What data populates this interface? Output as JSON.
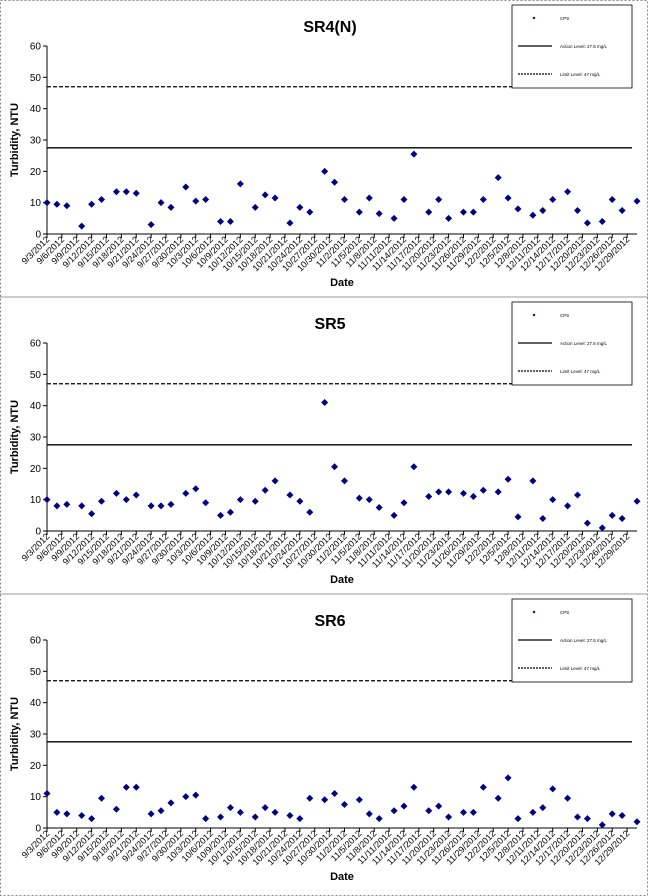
{
  "chart_data": [
    {
      "type": "scatter",
      "title": "SR4(N)",
      "x_label": "Date",
      "y_label": "Turbidity, NTU",
      "x": [
        "9/3/2012",
        "9/5/2012",
        "9/7/2012",
        "9/10/2012",
        "9/12/2012",
        "9/14/2012",
        "9/17/2012",
        "9/19/2012",
        "9/21/2012",
        "9/24/2012",
        "9/26/2012",
        "9/28/2012",
        "10/1/2012",
        "10/3/2012",
        "10/5/2012",
        "10/8/2012",
        "10/10/2012",
        "10/12/2012",
        "10/15/2012",
        "10/17/2012",
        "10/19/2012",
        "10/22/2012",
        "10/24/2012",
        "10/26/2012",
        "10/29/2012",
        "10/31/2012",
        "11/2/2012",
        "11/5/2012",
        "11/7/2012",
        "11/9/2012",
        "11/12/2012",
        "11/14/2012",
        "11/16/2012",
        "11/19/2012",
        "11/21/2012",
        "11/23/2012",
        "11/26/2012",
        "11/28/2012",
        "11/30/2012",
        "12/3/2012",
        "12/5/2012",
        "12/7/2012",
        "12/10/2012",
        "12/12/2012",
        "12/14/2012",
        "12/17/2012",
        "12/19/2012",
        "12/21/2012",
        "12/24/2012",
        "12/26/2012",
        "12/28/2012",
        "12/31/2012"
      ],
      "series": [
        {
          "name": "CPS",
          "color": "#000080",
          "values": [
            10,
            9.5,
            9,
            2.5,
            9.5,
            11,
            13.5,
            13.5,
            13,
            3,
            10,
            8.5,
            15,
            10.5,
            11,
            4,
            4,
            16,
            8.5,
            12.5,
            11.5,
            3.5,
            8.5,
            7,
            20,
            16.5,
            11,
            7,
            11.5,
            6.5,
            5,
            11,
            25.5,
            7,
            11,
            5,
            7,
            7,
            11,
            18,
            11.5,
            8,
            6,
            7.5,
            11,
            13.5,
            7.5,
            3.5,
            4,
            11,
            7.5,
            10.5
          ]
        }
      ],
      "reference_lines": [
        {
          "name": "Action Level: 27.5 mg/L",
          "value": 27.5,
          "dash": false
        },
        {
          "name": "Limit Level: 47 mg/L",
          "value": 47,
          "dash": true
        }
      ],
      "xlim": [
        "9/3/2012",
        "12/31/2012"
      ],
      "xticks": [
        "9/3/2012",
        "9/6/2012",
        "9/9/2012",
        "9/12/2012",
        "9/15/2012",
        "9/18/2012",
        "9/21/2012",
        "9/24/2012",
        "9/27/2012",
        "9/30/2012",
        "10/3/2012",
        "10/6/2012",
        "10/9/2012",
        "10/12/2012",
        "10/15/2012",
        "10/18/2012",
        "10/21/2012",
        "10/24/2012",
        "10/27/2012",
        "10/30/2012",
        "11/2/2012",
        "11/5/2012",
        "11/8/2012",
        "11/11/2012",
        "11/14/2012",
        "11/17/2012",
        "11/20/2012",
        "11/23/2012",
        "11/26/2012",
        "11/29/2012",
        "12/2/2012",
        "12/5/2012",
        "12/8/2012",
        "12/11/2012",
        "12/14/2012",
        "12/17/2012",
        "12/20/2012",
        "12/23/2012",
        "12/26/2012",
        "12/29/2012"
      ],
      "ylim": [
        0,
        60
      ],
      "yticks": [
        0,
        10,
        20,
        30,
        40,
        50,
        60
      ],
      "legend": "top-right"
    },
    {
      "type": "scatter",
      "title": "SR5",
      "x_label": "Date",
      "y_label": "Turbidity, NTU",
      "x": [
        "9/3/2012",
        "9/5/2012",
        "9/7/2012",
        "9/10/2012",
        "9/12/2012",
        "9/14/2012",
        "9/17/2012",
        "9/19/2012",
        "9/21/2012",
        "9/24/2012",
        "9/26/2012",
        "9/28/2012",
        "10/1/2012",
        "10/3/2012",
        "10/5/2012",
        "10/8/2012",
        "10/10/2012",
        "10/12/2012",
        "10/15/2012",
        "10/17/2012",
        "10/19/2012",
        "10/22/2012",
        "10/24/2012",
        "10/26/2012",
        "10/29/2012",
        "10/31/2012",
        "11/2/2012",
        "11/5/2012",
        "11/7/2012",
        "11/9/2012",
        "11/12/2012",
        "11/14/2012",
        "11/16/2012",
        "11/19/2012",
        "11/21/2012",
        "11/23/2012",
        "11/26/2012",
        "11/28/2012",
        "11/30/2012",
        "12/3/2012",
        "12/5/2012",
        "12/7/2012",
        "12/10/2012",
        "12/12/2012",
        "12/14/2012",
        "12/17/2012",
        "12/19/2012",
        "12/21/2012",
        "12/24/2012",
        "12/26/2012",
        "12/28/2012",
        "12/31/2012"
      ],
      "series": [
        {
          "name": "CPS",
          "color": "#000080",
          "values": [
            10,
            8,
            8.5,
            8,
            5.5,
            9.5,
            12,
            10,
            11.5,
            8,
            8,
            8.5,
            12,
            13.5,
            9,
            5,
            6,
            10,
            9.5,
            13,
            16,
            11.5,
            9.5,
            6,
            41,
            20.5,
            16,
            10.5,
            10,
            7.5,
            5,
            9,
            20.5,
            11,
            12.5,
            12.5,
            12,
            11,
            13,
            12.5,
            16.5,
            4.5,
            16,
            4,
            10,
            8,
            11.5,
            2.5,
            1,
            5,
            4,
            9.5
          ]
        }
      ],
      "reference_lines": [
        {
          "name": "Action Level: 27.5 mg/L",
          "value": 27.5,
          "dash": false
        },
        {
          "name": "Limit Level: 47 mg/L",
          "value": 47,
          "dash": true
        }
      ],
      "xlim": [
        "9/3/2012",
        "12/31/2012"
      ],
      "xticks": [
        "9/3/2012",
        "9/6/2012",
        "9/9/2012",
        "9/12/2012",
        "9/15/2012",
        "9/18/2012",
        "9/21/2012",
        "9/24/2012",
        "9/27/2012",
        "9/30/2012",
        "10/3/2012",
        "10/6/2012",
        "10/9/2012",
        "10/12/2012",
        "10/15/2012",
        "10/18/2012",
        "10/21/2012",
        "10/24/2012",
        "10/27/2012",
        "10/30/2012",
        "11/2/2012",
        "11/5/2012",
        "11/8/2012",
        "11/11/2012",
        "11/14/2012",
        "11/17/2012",
        "11/20/2012",
        "11/23/2012",
        "11/26/2012",
        "11/29/2012",
        "12/2/2012",
        "12/5/2012",
        "12/8/2012",
        "12/11/2012",
        "12/14/2012",
        "12/17/2012",
        "12/20/2012",
        "12/23/2012",
        "12/26/2012",
        "12/29/2012"
      ],
      "ylim": [
        0,
        60
      ],
      "yticks": [
        0,
        10,
        20,
        30,
        40,
        50,
        60
      ],
      "legend": "top-right"
    },
    {
      "type": "scatter",
      "title": "SR6",
      "x_label": "Date",
      "y_label": "Turbidity, NTU",
      "x": [
        "9/3/2012",
        "9/5/2012",
        "9/7/2012",
        "9/10/2012",
        "9/12/2012",
        "9/14/2012",
        "9/17/2012",
        "9/19/2012",
        "9/21/2012",
        "9/24/2012",
        "9/26/2012",
        "9/28/2012",
        "10/1/2012",
        "10/3/2012",
        "10/5/2012",
        "10/8/2012",
        "10/10/2012",
        "10/12/2012",
        "10/15/2012",
        "10/17/2012",
        "10/19/2012",
        "10/22/2012",
        "10/24/2012",
        "10/26/2012",
        "10/29/2012",
        "10/31/2012",
        "11/2/2012",
        "11/5/2012",
        "11/7/2012",
        "11/9/2012",
        "11/12/2012",
        "11/14/2012",
        "11/16/2012",
        "11/19/2012",
        "11/21/2012",
        "11/23/2012",
        "11/26/2012",
        "11/28/2012",
        "11/30/2012",
        "12/3/2012",
        "12/5/2012",
        "12/7/2012",
        "12/10/2012",
        "12/12/2012",
        "12/14/2012",
        "12/17/2012",
        "12/19/2012",
        "12/21/2012",
        "12/24/2012",
        "12/26/2012",
        "12/28/2012",
        "12/31/2012"
      ],
      "series": [
        {
          "name": "CPS",
          "color": "#000080",
          "values": [
            11,
            5,
            4.5,
            4,
            3,
            9.5,
            6,
            13,
            13,
            4.5,
            5.5,
            8,
            10,
            10.5,
            3,
            3.5,
            6.5,
            5,
            3.5,
            6.5,
            5,
            4,
            3,
            9.5,
            9,
            11,
            7.5,
            9,
            4.5,
            3,
            5.5,
            7,
            13,
            5.5,
            7,
            3.5,
            5,
            5,
            13,
            9.5,
            16,
            3,
            5,
            6.5,
            12.5,
            9.5,
            3.5,
            3,
            1,
            4.5,
            4,
            2
          ]
        }
      ],
      "reference_lines": [
        {
          "name": "Action Level: 27.5 mg/L",
          "value": 27.5,
          "dash": false
        },
        {
          "name": "Limit Level: 47 mg/L",
          "value": 47,
          "dash": true
        }
      ],
      "xlim": [
        "9/3/2012",
        "12/31/2012"
      ],
      "xticks": [
        "9/3/2012",
        "9/6/2012",
        "9/9/2012",
        "9/12/2012",
        "9/15/2012",
        "9/18/2012",
        "9/21/2012",
        "9/24/2012",
        "9/27/2012",
        "9/30/2012",
        "10/3/2012",
        "10/6/2012",
        "10/9/2012",
        "10/12/2012",
        "10/15/2012",
        "10/18/2012",
        "10/21/2012",
        "10/24/2012",
        "10/27/2012",
        "10/30/2012",
        "11/2/2012",
        "11/5/2012",
        "11/8/2012",
        "11/11/2012",
        "11/14/2012",
        "11/17/2012",
        "11/20/2012",
        "11/23/2012",
        "11/26/2012",
        "11/29/2012",
        "12/2/2012",
        "12/5/2012",
        "12/8/2012",
        "12/11/2012",
        "12/14/2012",
        "12/17/2012",
        "12/20/2012",
        "12/23/2012",
        "12/26/2012",
        "12/29/2012"
      ],
      "ylim": [
        0,
        60
      ],
      "yticks": [
        0,
        10,
        20,
        30,
        40,
        50,
        60
      ],
      "legend": "top-right"
    }
  ]
}
